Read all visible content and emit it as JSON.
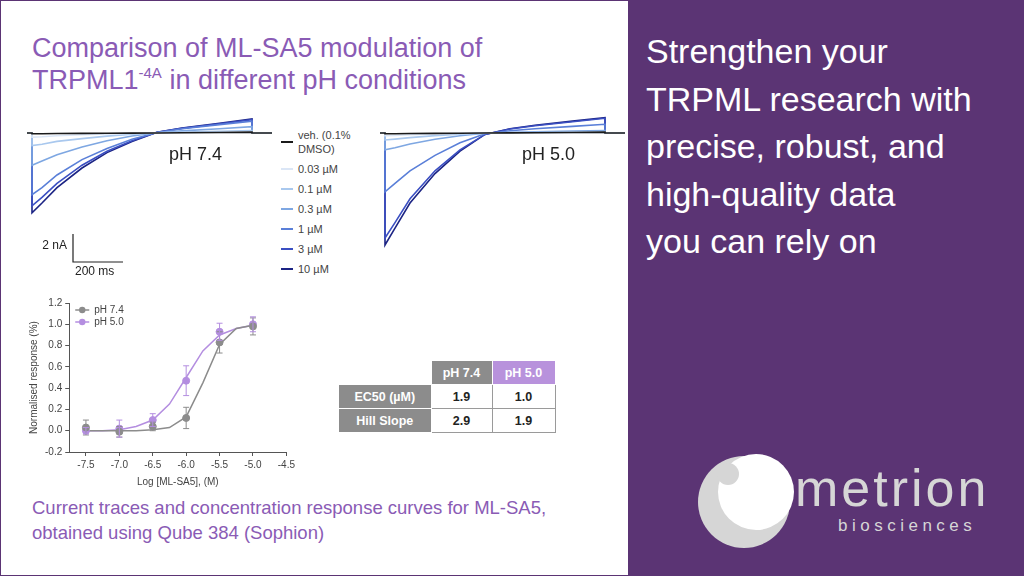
{
  "page": {
    "title": {
      "text": "Comparison of ML-SA5 modulation of TRPML1",
      "superscript": "-4A",
      "text_after": " in different pH conditions"
    },
    "caption": "Current traces and concentration response curves for ML-SA5, obtained using Qube 384 (Sophion)",
    "tagline": [
      "Strengthen your",
      "TRPML research with",
      "precise, robust, and",
      "high-quality data",
      "you can rely on"
    ],
    "logo": {
      "name": "metrion",
      "subtitle": "biosciences"
    },
    "table": {
      "header": [
        null,
        "pH 7.4",
        "pH 5.0"
      ],
      "rows": [
        [
          "EC50 (µM)",
          "1.9",
          "1.0"
        ],
        [
          "Hill Slope",
          "2.9",
          "1.9"
        ]
      ]
    }
  },
  "chart_data": [
    {
      "type": "line",
      "annotation": "pH 7.4",
      "x": [
        -20,
        0,
        0,
        40,
        100,
        200,
        300,
        400,
        500,
        600,
        750,
        880,
        880,
        960
      ],
      "xlim": [
        -20,
        960
      ],
      "ylim": [
        -8.5,
        1.5
      ],
      "tick_labels": false,
      "grid": false,
      "legend": "right",
      "scale_bar": {
        "y": 2,
        "y_label": "2 nA",
        "x": 200,
        "x_label": "200 ms"
      },
      "series": [
        {
          "name": "veh. (0.1% DMSO)",
          "color": "#1a1a1a",
          "values": [
            0,
            0,
            -0.05,
            -0.05,
            -0.04,
            -0.03,
            -0.02,
            -0.01,
            0,
            0.02,
            0.04,
            0.06,
            0,
            0
          ]
        },
        {
          "name": "0.03 µM",
          "color": "#dbe6f6",
          "values": [
            0,
            0,
            -0.3,
            -0.27,
            -0.2,
            -0.13,
            -0.07,
            -0.03,
            0,
            0.02,
            0.04,
            0.06,
            0,
            0
          ]
        },
        {
          "name": "0.1 µM",
          "color": "#a9c8ee",
          "values": [
            0,
            0,
            -0.9,
            -0.8,
            -0.6,
            -0.4,
            -0.22,
            -0.09,
            0.01,
            0.06,
            0.12,
            0.18,
            0,
            0
          ]
        },
        {
          "name": "0.3 µM",
          "color": "#7ea7e2",
          "values": [
            0,
            0,
            -2.3,
            -2.0,
            -1.55,
            -1.0,
            -0.55,
            -0.22,
            0.02,
            0.15,
            0.3,
            0.45,
            0,
            0
          ]
        },
        {
          "name": "1 µM",
          "color": "#5a7fd8",
          "values": [
            0,
            0,
            -4.4,
            -3.9,
            -3.0,
            -1.9,
            -1.1,
            -0.45,
            0.04,
            0.3,
            0.6,
            0.85,
            0,
            0
          ]
        },
        {
          "name": "3 µM",
          "color": "#3b4fc2",
          "values": [
            0,
            0,
            -5.2,
            -4.6,
            -3.6,
            -2.3,
            -1.3,
            -0.55,
            0.05,
            0.33,
            0.65,
            0.95,
            0,
            0
          ]
        },
        {
          "name": "10 µM",
          "color": "#1c2484",
          "values": [
            0,
            0,
            -5.7,
            -5.0,
            -3.9,
            -2.5,
            -1.4,
            -0.6,
            0.05,
            0.35,
            0.7,
            1.0,
            0,
            0
          ]
        }
      ]
    },
    {
      "type": "line",
      "annotation": "pH 5.0",
      "x": [
        -20,
        0,
        0,
        40,
        100,
        200,
        300,
        400,
        500,
        600,
        750,
        880,
        880,
        960
      ],
      "xlim": [
        -20,
        960
      ],
      "ylim": [
        -8.5,
        1.5
      ],
      "tick_labels": false,
      "grid": false,
      "series": [
        {
          "name": "veh. (0.1% DMSO)",
          "color": "#1a1a1a",
          "values": [
            0,
            0,
            -0.05,
            -0.05,
            -0.04,
            -0.03,
            -0.02,
            0,
            0.01,
            0.02,
            0.04,
            0.06,
            0,
            0
          ]
        },
        {
          "name": "0.03 µM",
          "color": "#dbe6f6",
          "values": [
            0,
            0,
            -0.2,
            -0.18,
            -0.13,
            -0.08,
            -0.03,
            0,
            0.01,
            0.02,
            0.02,
            0.03,
            0,
            0
          ]
        },
        {
          "name": "0.1 µM",
          "color": "#a9c8ee",
          "values": [
            0,
            0,
            -0.5,
            -0.44,
            -0.33,
            -0.19,
            -0.08,
            -0.01,
            0.02,
            0.04,
            0.06,
            0.08,
            0,
            0
          ]
        },
        {
          "name": "0.3 µM",
          "color": "#7ea7e2",
          "values": [
            0,
            0,
            -1.2,
            -1.05,
            -0.78,
            -0.45,
            -0.2,
            -0.02,
            0.05,
            0.09,
            0.14,
            0.18,
            0,
            0
          ]
        },
        {
          "name": "1 µM",
          "color": "#5a7fd8",
          "values": [
            0,
            0,
            -4.2,
            -3.6,
            -2.7,
            -1.6,
            -0.7,
            -0.05,
            0.16,
            0.3,
            0.47,
            0.62,
            0,
            0
          ]
        },
        {
          "name": "3 µM",
          "color": "#3b4fc2",
          "values": [
            0,
            0,
            -7.5,
            -6.4,
            -4.7,
            -2.7,
            -1.2,
            -0.1,
            0.28,
            0.52,
            0.8,
            1.05,
            0,
            0
          ]
        },
        {
          "name": "10 µM",
          "color": "#1c2484",
          "values": [
            0,
            0,
            -8.0,
            -6.8,
            -5.0,
            -2.9,
            -1.3,
            -0.1,
            0.3,
            0.55,
            0.85,
            1.1,
            0,
            0
          ]
        }
      ]
    },
    {
      "type": "scatter",
      "x_label": "Log [ML-SA5], (M)",
      "y_label": "Normalised response (%)",
      "x": [
        -7.5,
        -7,
        -6.5,
        -6,
        -5.5,
        -5
      ],
      "xlim": [
        -7.75,
        -4.5
      ],
      "xticks": [
        -7.5,
        {
          "value": -7,
          "label": "-7.0"
        },
        -6.5,
        {
          "value": -6,
          "label": "-6.0"
        },
        -5.5,
        {
          "value": -5,
          "label": "-5.0"
        },
        -4.5
      ],
      "ylim": [
        -0.2,
        1.2
      ],
      "yticks": [
        -0.2,
        {
          "value": 0,
          "label": "0.0"
        },
        0.2,
        0.4,
        0.6,
        0.8,
        {
          "value": 1,
          "label": "1.0"
        },
        1.2
      ],
      "grid": false,
      "legend": "upper left",
      "marker": "circle",
      "series": [
        {
          "name": "pH 7.4",
          "color": "#8c8c8c",
          "values": [
            0.03,
            -0.01,
            0.04,
            0.12,
            0.83,
            0.98
          ],
          "errors": [
            0.07,
            0.05,
            0.04,
            0.1,
            0.1,
            0.08
          ],
          "fit_x": [
            -7.5,
            -7.25,
            -7,
            -6.75,
            -6.5,
            -6.25,
            -6,
            -5.75,
            -5.5,
            -5.25,
            -5
          ],
          "fit_values": [
            0,
            0,
            0,
            0,
            0.01,
            0.03,
            0.13,
            0.45,
            0.81,
            0.96,
            0.99
          ]
        },
        {
          "name": "pH 5.0",
          "color": "#b48ee0",
          "values": [
            0,
            0.02,
            0.1,
            0.47,
            0.93,
            1.0
          ],
          "errors": [
            0.03,
            0.08,
            0.06,
            0.14,
            0.08,
            0.07
          ],
          "fit_x": [
            -7.5,
            -7.25,
            -7,
            -6.75,
            -6.5,
            -6.25,
            -6,
            -5.75,
            -5.5,
            -5.25,
            -5
          ],
          "fit_values": [
            0,
            0,
            0.01,
            0.04,
            0.1,
            0.25,
            0.5,
            0.75,
            0.9,
            0.96,
            0.99
          ]
        }
      ]
    }
  ]
}
